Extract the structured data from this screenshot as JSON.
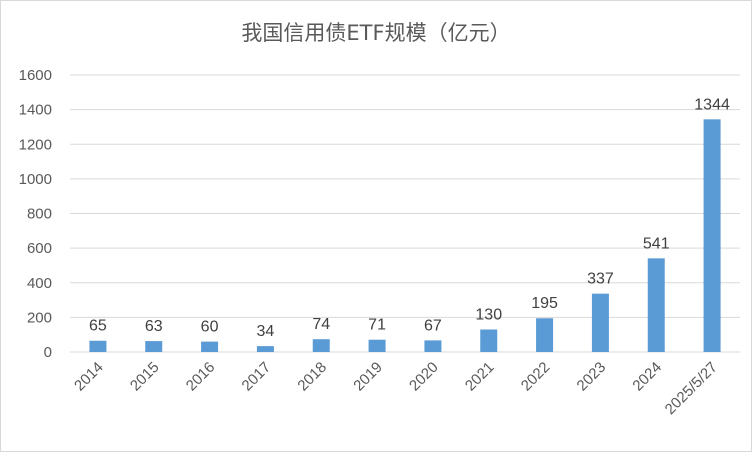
{
  "chart_data": {
    "type": "bar",
    "title": "我国信用债ETF规模（亿元）",
    "categories": [
      "2014",
      "2015",
      "2016",
      "2017",
      "2018",
      "2019",
      "2020",
      "2021",
      "2022",
      "2023",
      "2024",
      "2025/5/27"
    ],
    "values": [
      65,
      63,
      60,
      34,
      74,
      71,
      67,
      130,
      195,
      337,
      541,
      1344
    ],
    "xlabel": "",
    "ylabel": "",
    "ylim": [
      0,
      1600
    ],
    "yticks": [
      0,
      200,
      400,
      600,
      800,
      1000,
      1200,
      1400,
      1600
    ],
    "grid": true,
    "legend": "none",
    "bar_color": "#5b9bd5",
    "grid_color": "#d9d9d9"
  }
}
